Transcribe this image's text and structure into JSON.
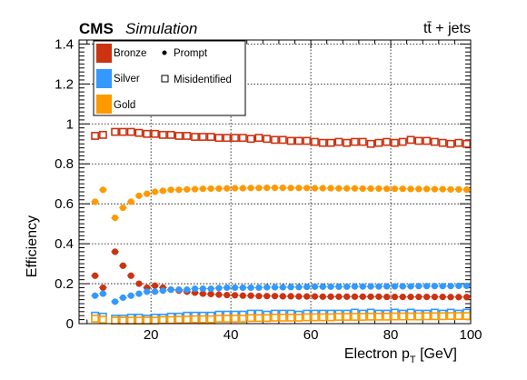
{
  "header": {
    "experiment": "CMS",
    "status": "Simulation",
    "process": "tt̄ + jets"
  },
  "legend": {
    "bronze": "Bronze",
    "silver": "Silver",
    "gold": "Gold",
    "prompt": "Prompt",
    "misid": "Misidentified"
  },
  "colors": {
    "bronze": "#cc3311",
    "silver": "#3399ff",
    "gold": "#ff9900"
  },
  "chart_data": {
    "type": "scatter",
    "xlabel": "Electron p_T [GeV]",
    "xlabel_main": "Electron p",
    "xlabel_sub": "T",
    "xlabel_unit": " [GeV]",
    "ylabel": "Efficiency",
    "xlim": [
      2,
      100
    ],
    "ylim": [
      0,
      1.42
    ],
    "xticks": [
      20,
      40,
      60,
      80,
      100
    ],
    "yticks": [
      0,
      0.2,
      0.4,
      0.6,
      0.8,
      1,
      1.2,
      1.4
    ],
    "ytick_labels": [
      "0",
      "0.2",
      "0.4",
      "0.6",
      "0.8",
      "1",
      "1.2",
      "1.4"
    ],
    "grid": true,
    "x": [
      6,
      8,
      11,
      13,
      15,
      17,
      19,
      21,
      23,
      25,
      27,
      29,
      31,
      33,
      35,
      37,
      39,
      41,
      43,
      45,
      47,
      49,
      51,
      53,
      55,
      57,
      59,
      61,
      63,
      65,
      67,
      69,
      71,
      73,
      75,
      77,
      79,
      81,
      83,
      85,
      87,
      89,
      91,
      93,
      95,
      97,
      99
    ],
    "series": [
      {
        "name": "Bronze",
        "marker": "Prompt",
        "values": [
          0.24,
          0.18,
          0.36,
          0.29,
          0.24,
          0.2,
          0.18,
          0.19,
          0.18,
          0.17,
          0.165,
          0.16,
          0.155,
          0.15,
          0.148,
          0.145,
          0.143,
          0.142,
          0.14,
          0.14,
          0.138,
          0.138,
          0.138,
          0.137,
          0.137,
          0.136,
          0.136,
          0.136,
          0.135,
          0.135,
          0.135,
          0.135,
          0.135,
          0.135,
          0.135,
          0.135,
          0.134,
          0.134,
          0.134,
          0.134,
          0.134,
          0.134,
          0.134,
          0.134,
          0.133,
          0.133,
          0.133
        ]
      },
      {
        "name": "Silver",
        "marker": "Prompt",
        "values": [
          0.14,
          0.15,
          0.11,
          0.13,
          0.14,
          0.15,
          0.16,
          0.16,
          0.165,
          0.17,
          0.17,
          0.17,
          0.175,
          0.175,
          0.175,
          0.178,
          0.18,
          0.18,
          0.18,
          0.18,
          0.18,
          0.182,
          0.182,
          0.182,
          0.183,
          0.183,
          0.184,
          0.185,
          0.185,
          0.185,
          0.185,
          0.185,
          0.186,
          0.186,
          0.186,
          0.186,
          0.187,
          0.187,
          0.187,
          0.187,
          0.188,
          0.188,
          0.188,
          0.188,
          0.188,
          0.189,
          0.189
        ]
      },
      {
        "name": "Gold",
        "marker": "Prompt",
        "values": [
          0.61,
          0.67,
          0.53,
          0.58,
          0.61,
          0.64,
          0.65,
          0.66,
          0.665,
          0.67,
          0.67,
          0.672,
          0.673,
          0.675,
          0.676,
          0.676,
          0.677,
          0.678,
          0.678,
          0.679,
          0.679,
          0.68,
          0.68,
          0.68,
          0.679,
          0.679,
          0.679,
          0.678,
          0.678,
          0.678,
          0.677,
          0.677,
          0.677,
          0.676,
          0.676,
          0.676,
          0.675,
          0.675,
          0.675,
          0.674,
          0.674,
          0.674,
          0.673,
          0.673,
          0.672,
          0.672,
          0.671
        ]
      },
      {
        "name": "Bronze",
        "marker": "Misidentified",
        "values": [
          0.94,
          0.945,
          0.96,
          0.96,
          0.96,
          0.955,
          0.95,
          0.95,
          0.945,
          0.945,
          0.94,
          0.94,
          0.935,
          0.935,
          0.935,
          0.93,
          0.93,
          0.93,
          0.93,
          0.925,
          0.93,
          0.925,
          0.92,
          0.92,
          0.915,
          0.915,
          0.915,
          0.91,
          0.905,
          0.905,
          0.91,
          0.905,
          0.91,
          0.91,
          0.9,
          0.905,
          0.91,
          0.905,
          0.91,
          0.92,
          0.915,
          0.915,
          0.91,
          0.905,
          0.9,
          0.905,
          0.9
        ]
      },
      {
        "name": "Silver",
        "marker": "Misidentified",
        "values": [
          0.04,
          0.035,
          0.025,
          0.025,
          0.03,
          0.03,
          0.025,
          0.03,
          0.03,
          0.035,
          0.035,
          0.04,
          0.04,
          0.04,
          0.04,
          0.045,
          0.045,
          0.045,
          0.045,
          0.05,
          0.05,
          0.045,
          0.05,
          0.05,
          0.05,
          0.045,
          0.05,
          0.05,
          0.05,
          0.05,
          0.05,
          0.05,
          0.055,
          0.05,
          0.055,
          0.05,
          0.05,
          0.055,
          0.05,
          0.055,
          0.05,
          0.05,
          0.055,
          0.05,
          0.055,
          0.05,
          0.055
        ]
      },
      {
        "name": "Gold",
        "marker": "Misidentified",
        "values": [
          0.025,
          0.02,
          0.015,
          0.015,
          0.015,
          0.015,
          0.015,
          0.015,
          0.018,
          0.018,
          0.02,
          0.02,
          0.022,
          0.022,
          0.022,
          0.025,
          0.025,
          0.025,
          0.025,
          0.028,
          0.028,
          0.028,
          0.03,
          0.03,
          0.03,
          0.03,
          0.032,
          0.032,
          0.032,
          0.032,
          0.034,
          0.034,
          0.034,
          0.034,
          0.035,
          0.035,
          0.035,
          0.036,
          0.036,
          0.036,
          0.036,
          0.037,
          0.037,
          0.037,
          0.038,
          0.038,
          0.038
        ]
      }
    ]
  }
}
